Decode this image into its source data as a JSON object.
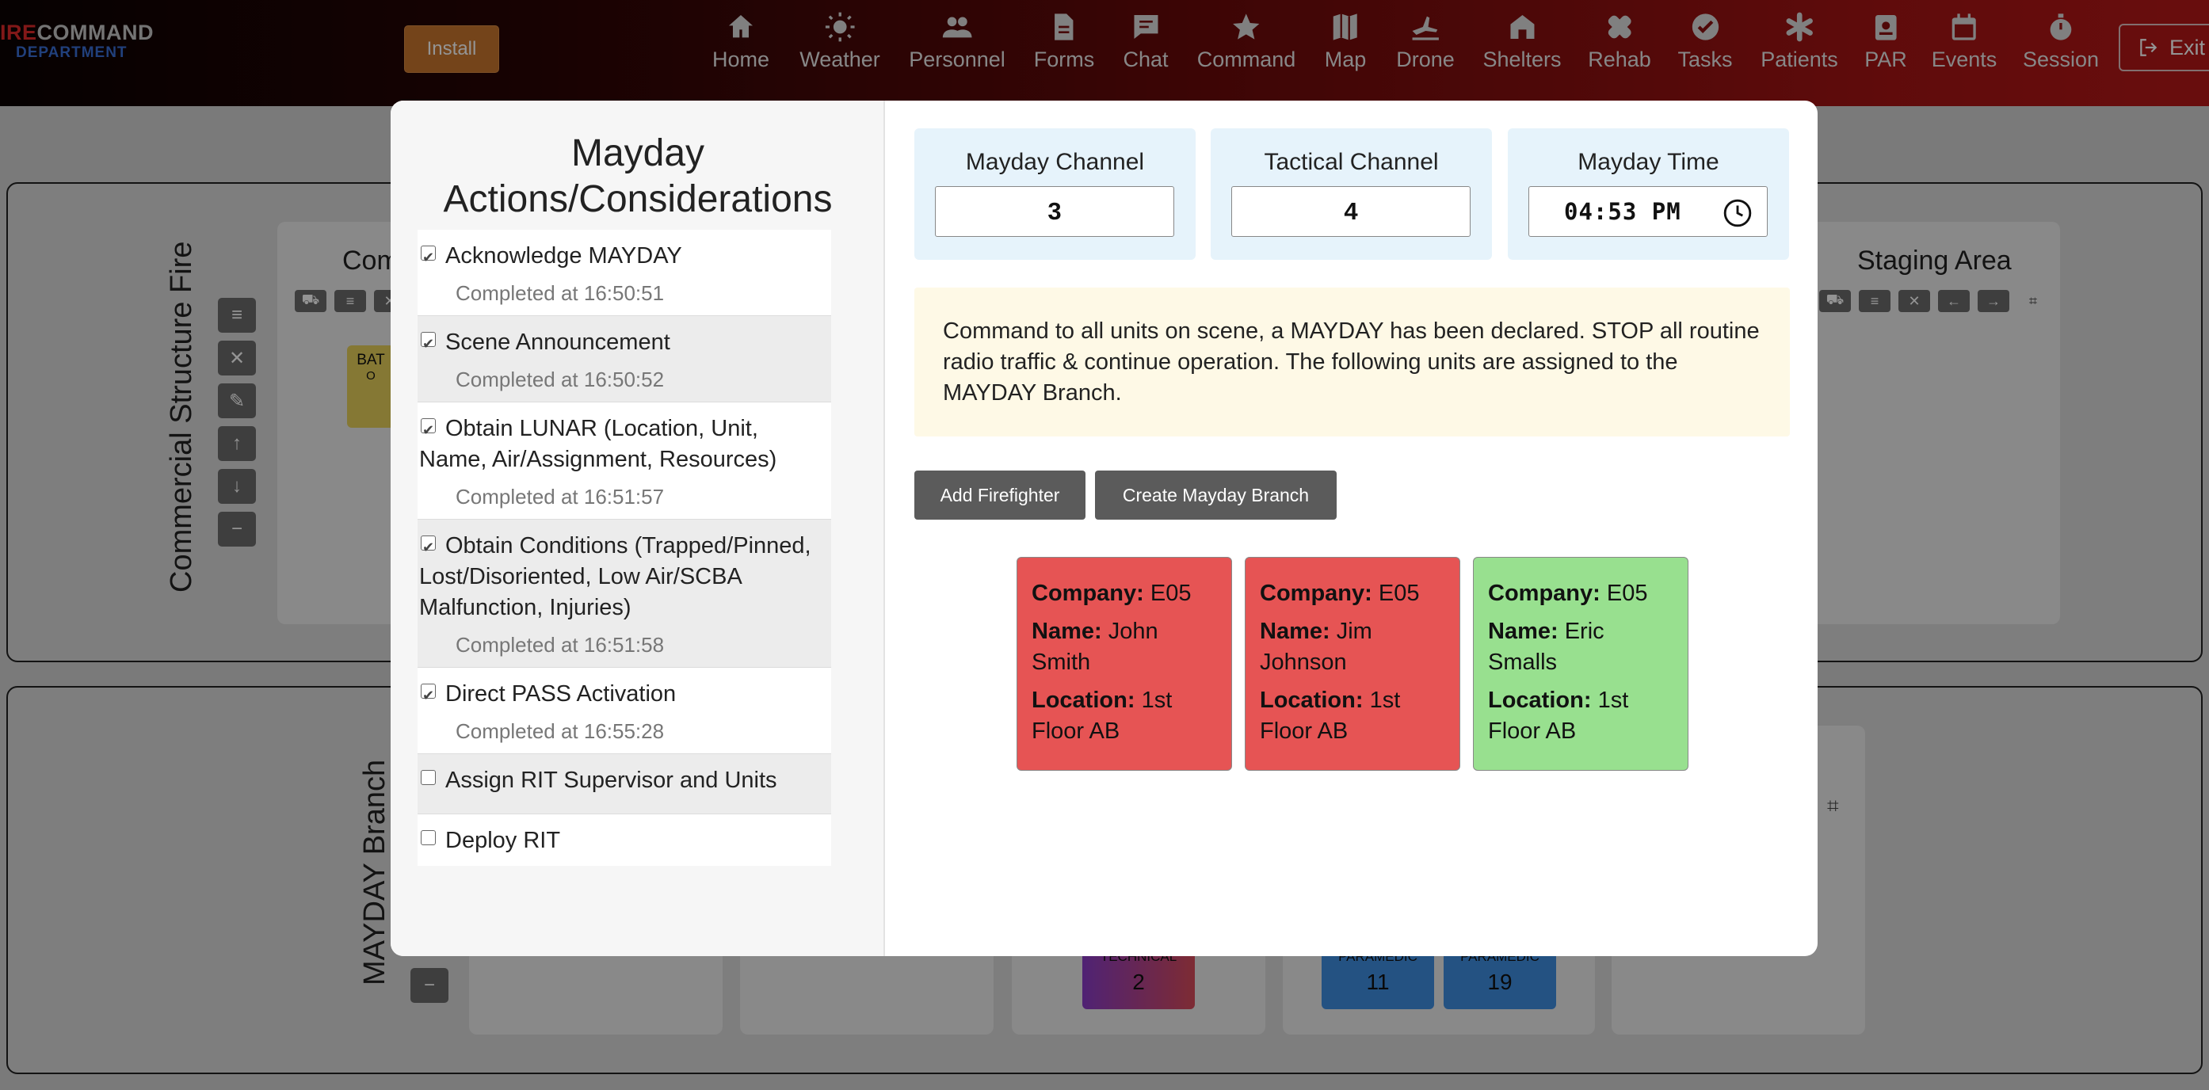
{
  "header": {
    "logo_fire_prefix": "IRE",
    "logo_command": "COMMAND",
    "logo_department": "DEPARTMENT",
    "install_label": "Install",
    "exit_label": "Exit",
    "nav": [
      {
        "label": "Home",
        "icon": "home-icon"
      },
      {
        "label": "Weather",
        "icon": "sun-icon"
      },
      {
        "label": "Personnel",
        "icon": "people-icon"
      },
      {
        "label": "Forms",
        "icon": "document-icon"
      },
      {
        "label": "Chat",
        "icon": "chat-icon"
      },
      {
        "label": "Command",
        "icon": "star-icon"
      },
      {
        "label": "Map",
        "icon": "map-icon"
      },
      {
        "label": "Drone",
        "icon": "drone-icon"
      },
      {
        "label": "Shelters",
        "icon": "shelter-icon"
      },
      {
        "label": "Rehab",
        "icon": "bandage-icon"
      },
      {
        "label": "Tasks",
        "icon": "check-circle-icon"
      },
      {
        "label": "Patients",
        "icon": "asterisk-icon"
      },
      {
        "label": "PAR",
        "icon": "badge-icon"
      },
      {
        "label": "Events",
        "icon": "calendar-icon"
      },
      {
        "label": "Session",
        "icon": "stopwatch-icon"
      }
    ]
  },
  "background": {
    "panel1_label": "Commercial Structure Fire",
    "panel2_label": "MAYDAY Branch",
    "card_partial_title": "Com",
    "staging_title": "Staging Area",
    "bat_chip_text": "BAT",
    "bat_chip_sub": "O",
    "units": [
      {
        "category": "TECHNICAL",
        "number": "2"
      },
      {
        "category": "PARAMEDIC",
        "number": "11"
      },
      {
        "category": "PARAMEDIC",
        "number": "19"
      }
    ]
  },
  "modal": {
    "left_title": "Mayday Actions/Considerations",
    "checklist": [
      {
        "label": "Acknowledge MAYDAY",
        "checked": true,
        "completed": "Completed at 16:50:51"
      },
      {
        "label": "Scene Announcement",
        "checked": true,
        "completed": "Completed at 16:50:52"
      },
      {
        "label": "Obtain LUNAR (Location, Unit, Name, Air/Assignment, Resources)",
        "checked": true,
        "completed": "Completed at 16:51:57"
      },
      {
        "label": "Obtain Conditions (Trapped/Pinned, Lost/Disoriented, Low Air/SCBA Malfunction, Injuries)",
        "checked": true,
        "completed": "Completed at 16:51:58"
      },
      {
        "label": "Direct PASS Activation",
        "checked": true,
        "completed": "Completed at 16:55:28"
      },
      {
        "label": "Assign RIT Supervisor and Units",
        "checked": false,
        "completed": ""
      },
      {
        "label": "Deploy RIT",
        "checked": false,
        "completed": ""
      }
    ],
    "mayday_channel": {
      "label": "Mayday Channel",
      "value": "3"
    },
    "tactical_channel": {
      "label": "Tactical Channel",
      "value": "4"
    },
    "mayday_time": {
      "label": "Mayday Time",
      "value": "04:53 PM"
    },
    "announcement": "Command to all units on scene, a MAYDAY has been declared. STOP all routine radio traffic & continue operation. The following units are assigned to the MAYDAY Branch.",
    "add_firefighter_label": "Add Firefighter",
    "create_branch_label": "Create Mayday Branch",
    "field_labels": {
      "company": "Company:",
      "name": "Name:",
      "location": "Location:"
    },
    "firefighters": [
      {
        "company": "E05",
        "name": "John Smith",
        "location": "1st Floor AB",
        "color": "#e65454"
      },
      {
        "company": "E05",
        "name": "Jim Johnson",
        "location": "1st Floor AB",
        "color": "#e65454"
      },
      {
        "company": "E05",
        "name": "Eric Smalls",
        "location": "1st Floor AB",
        "color": "#98e08f"
      }
    ]
  }
}
